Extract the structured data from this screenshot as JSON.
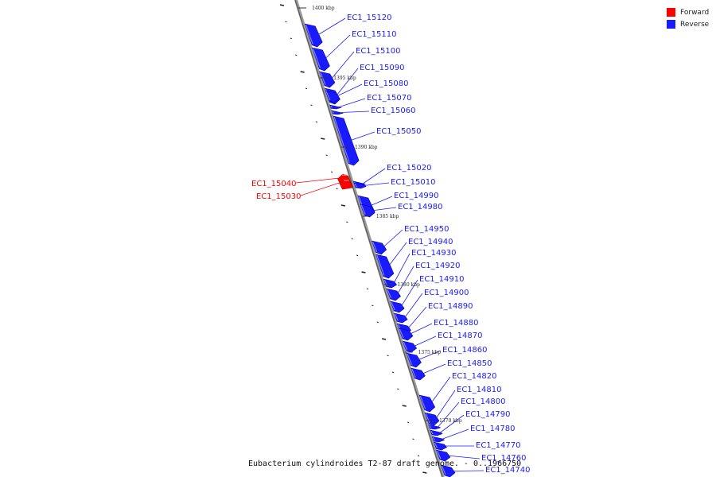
{
  "legend": {
    "forward_label": "Forward",
    "forward_color": "#ff0000",
    "reverse_label": "Reverse",
    "reverse_color": "#1a1aff"
  },
  "caption": "Eubacterium cylindroides T2-87 draft genome. - 0..1966750",
  "axis": {
    "unit": "kbp",
    "ticks": [
      {
        "kbp": 1400,
        "label": "1400 kbp"
      },
      {
        "kbp": 1395,
        "label": "1395 kbp"
      },
      {
        "kbp": 1390,
        "label": "1390 kbp"
      },
      {
        "kbp": 1385,
        "label": "1385 kbp"
      },
      {
        "kbp": 1380,
        "label": "1380 kbp"
      },
      {
        "kbp": 1375,
        "label": "1375 kbp"
      },
      {
        "kbp": 1370,
        "label": "1370 kbp"
      }
    ]
  },
  "genes": [
    {
      "name": "EC1_15120",
      "strand": "reverse"
    },
    {
      "name": "EC1_15110",
      "strand": "reverse"
    },
    {
      "name": "EC1_15100",
      "strand": "reverse"
    },
    {
      "name": "EC1_15090",
      "strand": "reverse"
    },
    {
      "name": "EC1_15080",
      "strand": "reverse"
    },
    {
      "name": "EC1_15070",
      "strand": "reverse"
    },
    {
      "name": "EC1_15060",
      "strand": "reverse"
    },
    {
      "name": "EC1_15050",
      "strand": "reverse"
    },
    {
      "name": "EC1_15040",
      "strand": "forward"
    },
    {
      "name": "EC1_15030",
      "strand": "forward"
    },
    {
      "name": "EC1_15020",
      "strand": "reverse"
    },
    {
      "name": "EC1_15010",
      "strand": "reverse"
    },
    {
      "name": "EC1_14990",
      "strand": "reverse"
    },
    {
      "name": "EC1_14980",
      "strand": "reverse"
    },
    {
      "name": "EC1_14950",
      "strand": "reverse"
    },
    {
      "name": "EC1_14940",
      "strand": "reverse"
    },
    {
      "name": "EC1_14930",
      "strand": "reverse"
    },
    {
      "name": "EC1_14920",
      "strand": "reverse"
    },
    {
      "name": "EC1_14910",
      "strand": "reverse"
    },
    {
      "name": "EC1_14900",
      "strand": "reverse"
    },
    {
      "name": "EC1_14890",
      "strand": "reverse"
    },
    {
      "name": "EC1_14880",
      "strand": "reverse"
    },
    {
      "name": "EC1_14870",
      "strand": "reverse"
    },
    {
      "name": "EC1_14860",
      "strand": "reverse"
    },
    {
      "name": "EC1_14850",
      "strand": "reverse"
    },
    {
      "name": "EC1_14820",
      "strand": "reverse"
    },
    {
      "name": "EC1_14810",
      "strand": "reverse"
    },
    {
      "name": "EC1_14800",
      "strand": "reverse"
    },
    {
      "name": "EC1_14790",
      "strand": "reverse"
    },
    {
      "name": "EC1_14780",
      "strand": "reverse"
    },
    {
      "name": "EC1_14770",
      "strand": "reverse"
    },
    {
      "name": "EC1_14760",
      "strand": "reverse"
    },
    {
      "name": "EC1_14740",
      "strand": "reverse"
    }
  ]
}
